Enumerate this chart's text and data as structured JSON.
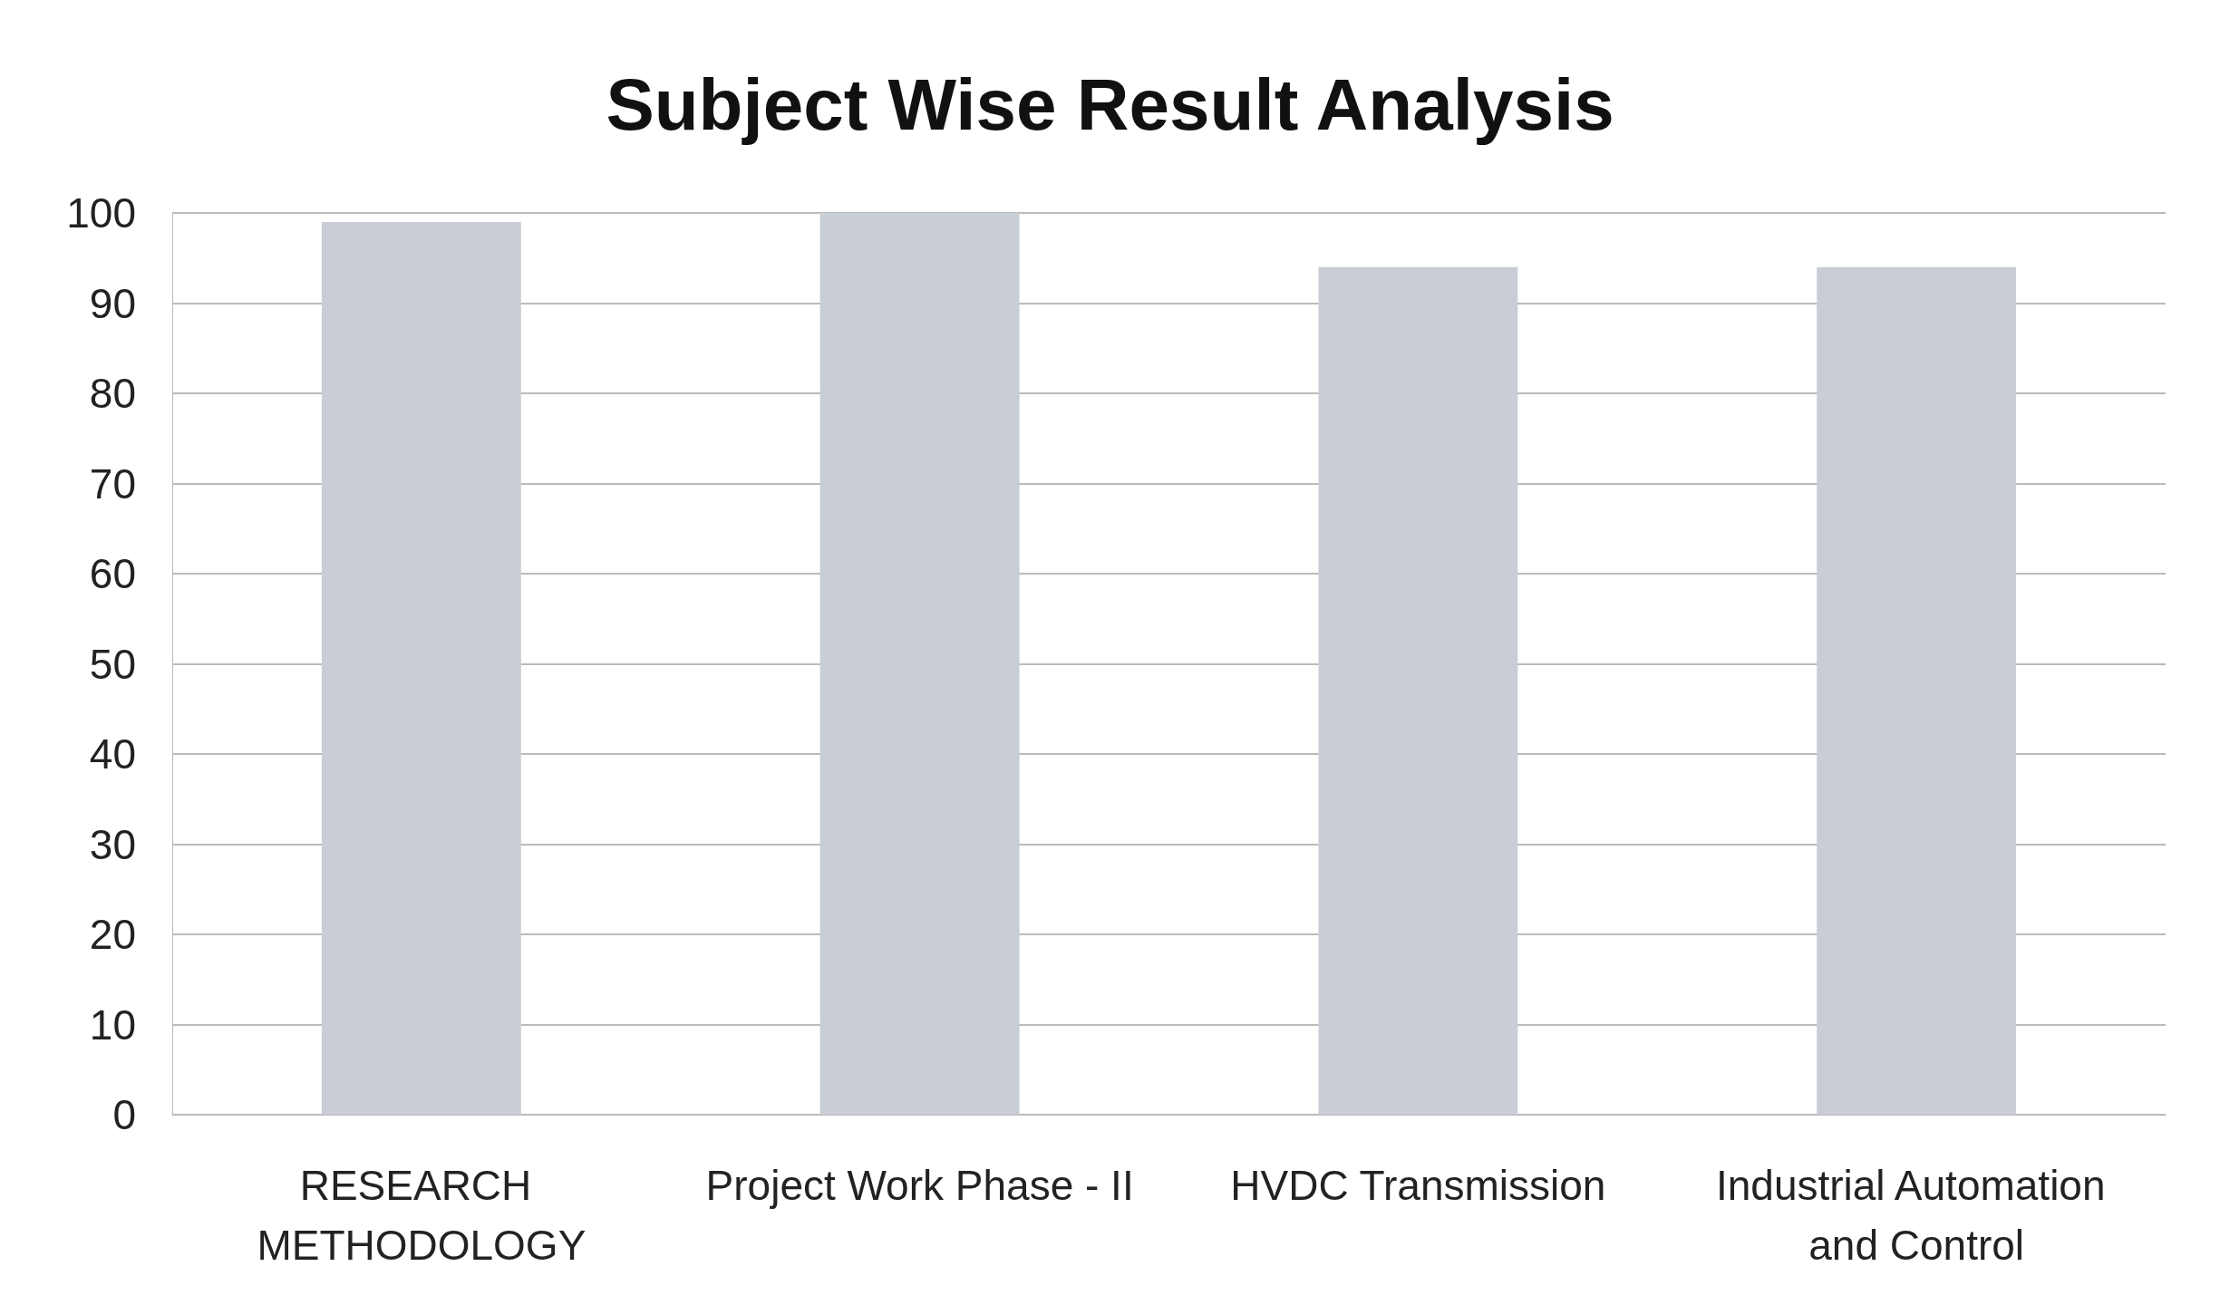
{
  "chart_data": {
    "type": "bar",
    "title": "Subject Wise Result Analysis",
    "categories": [
      "RESEARCH METHODOLOGY",
      "Project Work Phase - II",
      "HVDC Transmission",
      "Industrial Automation and Control"
    ],
    "values": [
      99,
      100,
      94,
      94
    ],
    "color": "#c9ced6",
    "ylim": [
      0,
      100
    ],
    "yticks": [
      0,
      10,
      20,
      30,
      40,
      50,
      60,
      70,
      80,
      90,
      100
    ],
    "grid": "y"
  }
}
